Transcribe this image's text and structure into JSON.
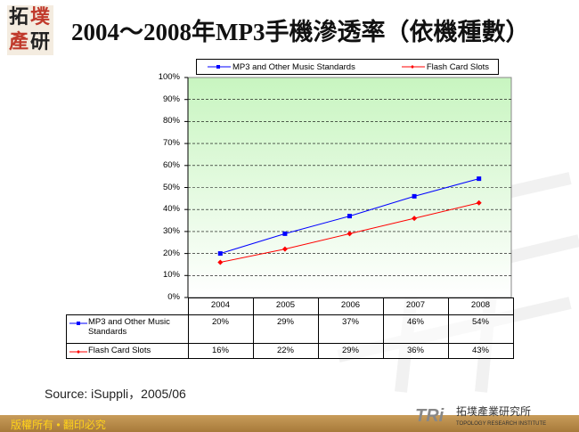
{
  "title": "2004～2008年MP3手機滲透率（依機種數）",
  "logo": "拓墣產研",
  "chart_data": {
    "type": "line",
    "categories": [
      "2004",
      "2005",
      "2006",
      "2007",
      "2008"
    ],
    "series": [
      {
        "name": "MP3 and Other Music Standards",
        "color": "#0000ff",
        "values": [
          20,
          29,
          37,
          46,
          54
        ],
        "labels": [
          "20%",
          "29%",
          "37%",
          "46%",
          "54%"
        ]
      },
      {
        "name": "Flash Card Slots",
        "color": "#ff0000",
        "values": [
          16,
          22,
          29,
          36,
          43
        ],
        "labels": [
          "16%",
          "22%",
          "29%",
          "36%",
          "43%"
        ]
      }
    ],
    "ylim": [
      0,
      100
    ],
    "yticks": [
      "0%",
      "10%",
      "20%",
      "30%",
      "40%",
      "50%",
      "60%",
      "70%",
      "80%",
      "90%",
      "100%"
    ],
    "grid": true,
    "legend": "top",
    "data_table": true,
    "plot_background": "#ccffcc"
  },
  "source": "Source: iSuppli，2005/06",
  "footer": {
    "copyright": "版權所有 • 翻印必究",
    "brand": "TRi",
    "brand_name": "拓墣產業研究所",
    "brand_en": "TOPOLOGY RESEARCH INSTITUTE"
  }
}
